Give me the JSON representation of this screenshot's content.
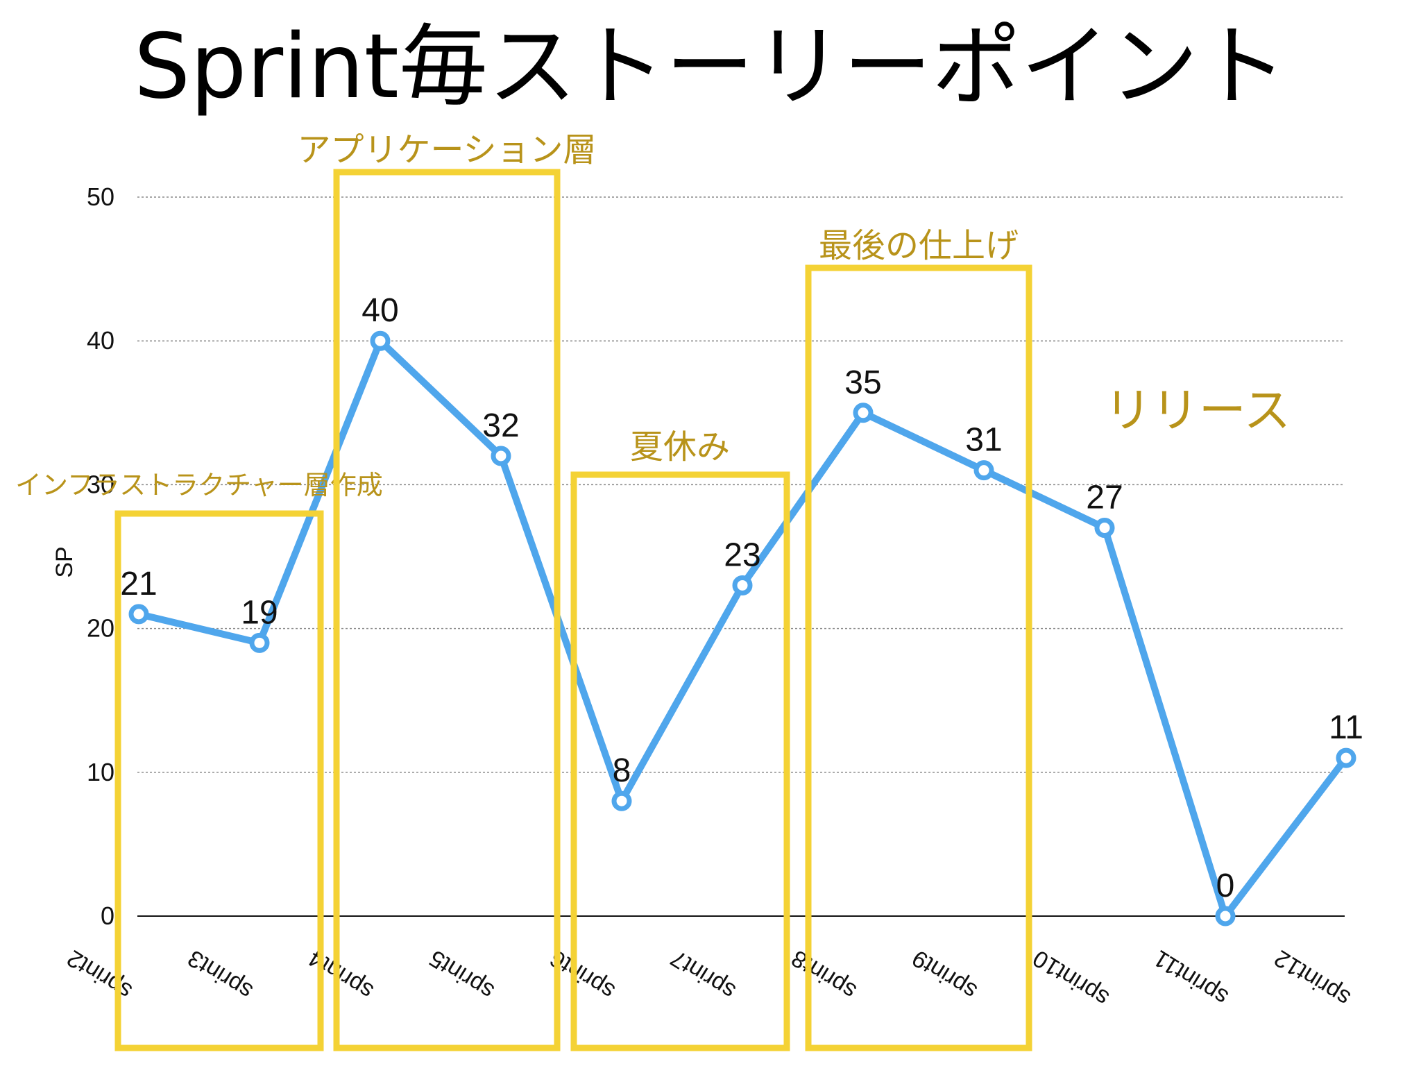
{
  "title": "Sprint毎ストーリーポイント",
  "colors": {
    "line": "#4fa6ec",
    "box": "#f4d235",
    "annotation_text": "#b8931a",
    "grid": "#888888",
    "axis": "#111111"
  },
  "chart_data": {
    "type": "line",
    "title": "Sprint毎ストーリーポイント",
    "xlabel": "",
    "ylabel": "SP",
    "ylim": [
      0,
      50
    ],
    "yticks": [
      0,
      10,
      20,
      30,
      40,
      50
    ],
    "grid": "horizontal-dotted",
    "categories": [
      "sprint2",
      "sprint3",
      "sprint4",
      "sprint5",
      "sprint6",
      "sprint7",
      "sprint8",
      "sprint9",
      "sprint10",
      "sprint11",
      "sprint12"
    ],
    "values": [
      21,
      19,
      40,
      32,
      8,
      23,
      35,
      31,
      27,
      0,
      11
    ],
    "data_labels": [
      "21",
      "19",
      "40",
      "32",
      "8",
      "23",
      "35",
      "31",
      "27",
      "0",
      "11"
    ],
    "annotations": [
      {
        "label": "インフラストラクチャー層作成",
        "from": "sprint2",
        "to": "sprint3"
      },
      {
        "label": "アプリケーション層",
        "from": "sprint4",
        "to": "sprint5"
      },
      {
        "label": "夏休み",
        "from": "sprint6",
        "to": "sprint7"
      },
      {
        "label": "最後の仕上げ",
        "from": "sprint8",
        "to": "sprint9"
      },
      {
        "label": "リリース",
        "from": "sprint10",
        "to": "sprint12"
      }
    ]
  }
}
